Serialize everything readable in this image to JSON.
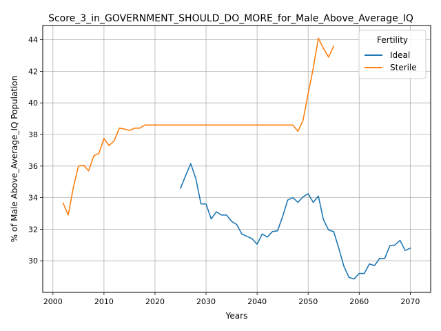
{
  "chart_data": {
    "type": "line",
    "title": "Score_3_in_GOVERNMENT_SHOULD_DO_MORE_for_Male_Above_Average_IQ",
    "xlabel": "Years",
    "ylabel": "% of Male Above_Average_IQ Population",
    "xlim": [
      1998,
      2074
    ],
    "ylim": [
      28.0,
      44.9
    ],
    "xticks": [
      2000,
      2010,
      2020,
      2030,
      2040,
      2050,
      2060,
      2070
    ],
    "yticks": [
      30,
      32,
      34,
      36,
      38,
      40,
      42,
      44
    ],
    "grid": true,
    "legend": {
      "title": "Fertility",
      "placement": "top-right"
    },
    "series": [
      {
        "name": "Ideal",
        "color": "#1f77b4",
        "x": [
          2025,
          2026,
          2027,
          2028,
          2029,
          2030,
          2031,
          2032,
          2033,
          2034,
          2035,
          2036,
          2037,
          2038,
          2039,
          2040,
          2041,
          2042,
          2043,
          2044,
          2045,
          2046,
          2047,
          2048,
          2049,
          2050,
          2051,
          2052,
          2053,
          2054,
          2055,
          2056,
          2057,
          2058,
          2059,
          2060,
          2061,
          2062,
          2063,
          2064,
          2065,
          2066,
          2067,
          2068,
          2069,
          2070
        ],
        "y": [
          34.6,
          35.4,
          36.15,
          35.2,
          33.6,
          33.6,
          32.65,
          33.1,
          32.9,
          32.9,
          32.5,
          32.3,
          31.7,
          31.55,
          31.4,
          31.05,
          31.7,
          31.5,
          31.85,
          31.9,
          32.8,
          33.85,
          34.0,
          33.7,
          34.05,
          34.25,
          33.7,
          34.1,
          32.6,
          31.95,
          31.85,
          30.8,
          29.65,
          28.95,
          28.85,
          29.2,
          29.2,
          29.8,
          29.7,
          30.15,
          30.15,
          30.95,
          31.0,
          31.3,
          30.65,
          30.8
        ]
      },
      {
        "name": "Sterile",
        "color": "#ff7f0e",
        "x": [
          2002,
          2003,
          2004,
          2005,
          2006,
          2007,
          2008,
          2009,
          2010,
          2011,
          2012,
          2013,
          2014,
          2015,
          2016,
          2017,
          2018,
          2019,
          2020,
          2021,
          2022,
          2023,
          2024,
          2025,
          2026,
          2027,
          2028,
          2029,
          2030,
          2031,
          2032,
          2033,
          2034,
          2035,
          2036,
          2037,
          2038,
          2039,
          2040,
          2041,
          2042,
          2043,
          2044,
          2045,
          2046,
          2047,
          2048,
          2049,
          2050,
          2051,
          2052,
          2053,
          2054,
          2055
        ],
        "y": [
          33.65,
          32.9,
          34.65,
          36.0,
          36.05,
          35.7,
          36.65,
          36.8,
          37.75,
          37.3,
          37.6,
          38.4,
          38.35,
          38.25,
          38.4,
          38.4,
          38.6,
          38.6,
          38.6,
          38.6,
          38.6,
          38.6,
          38.6,
          38.6,
          38.6,
          38.6,
          38.6,
          38.6,
          38.6,
          38.6,
          38.6,
          38.6,
          38.6,
          38.6,
          38.6,
          38.6,
          38.6,
          38.6,
          38.6,
          38.6,
          38.6,
          38.6,
          38.6,
          38.6,
          38.6,
          38.6,
          38.2,
          38.9,
          40.6,
          42.2,
          44.1,
          43.45,
          42.9,
          43.6
        ]
      }
    ]
  }
}
